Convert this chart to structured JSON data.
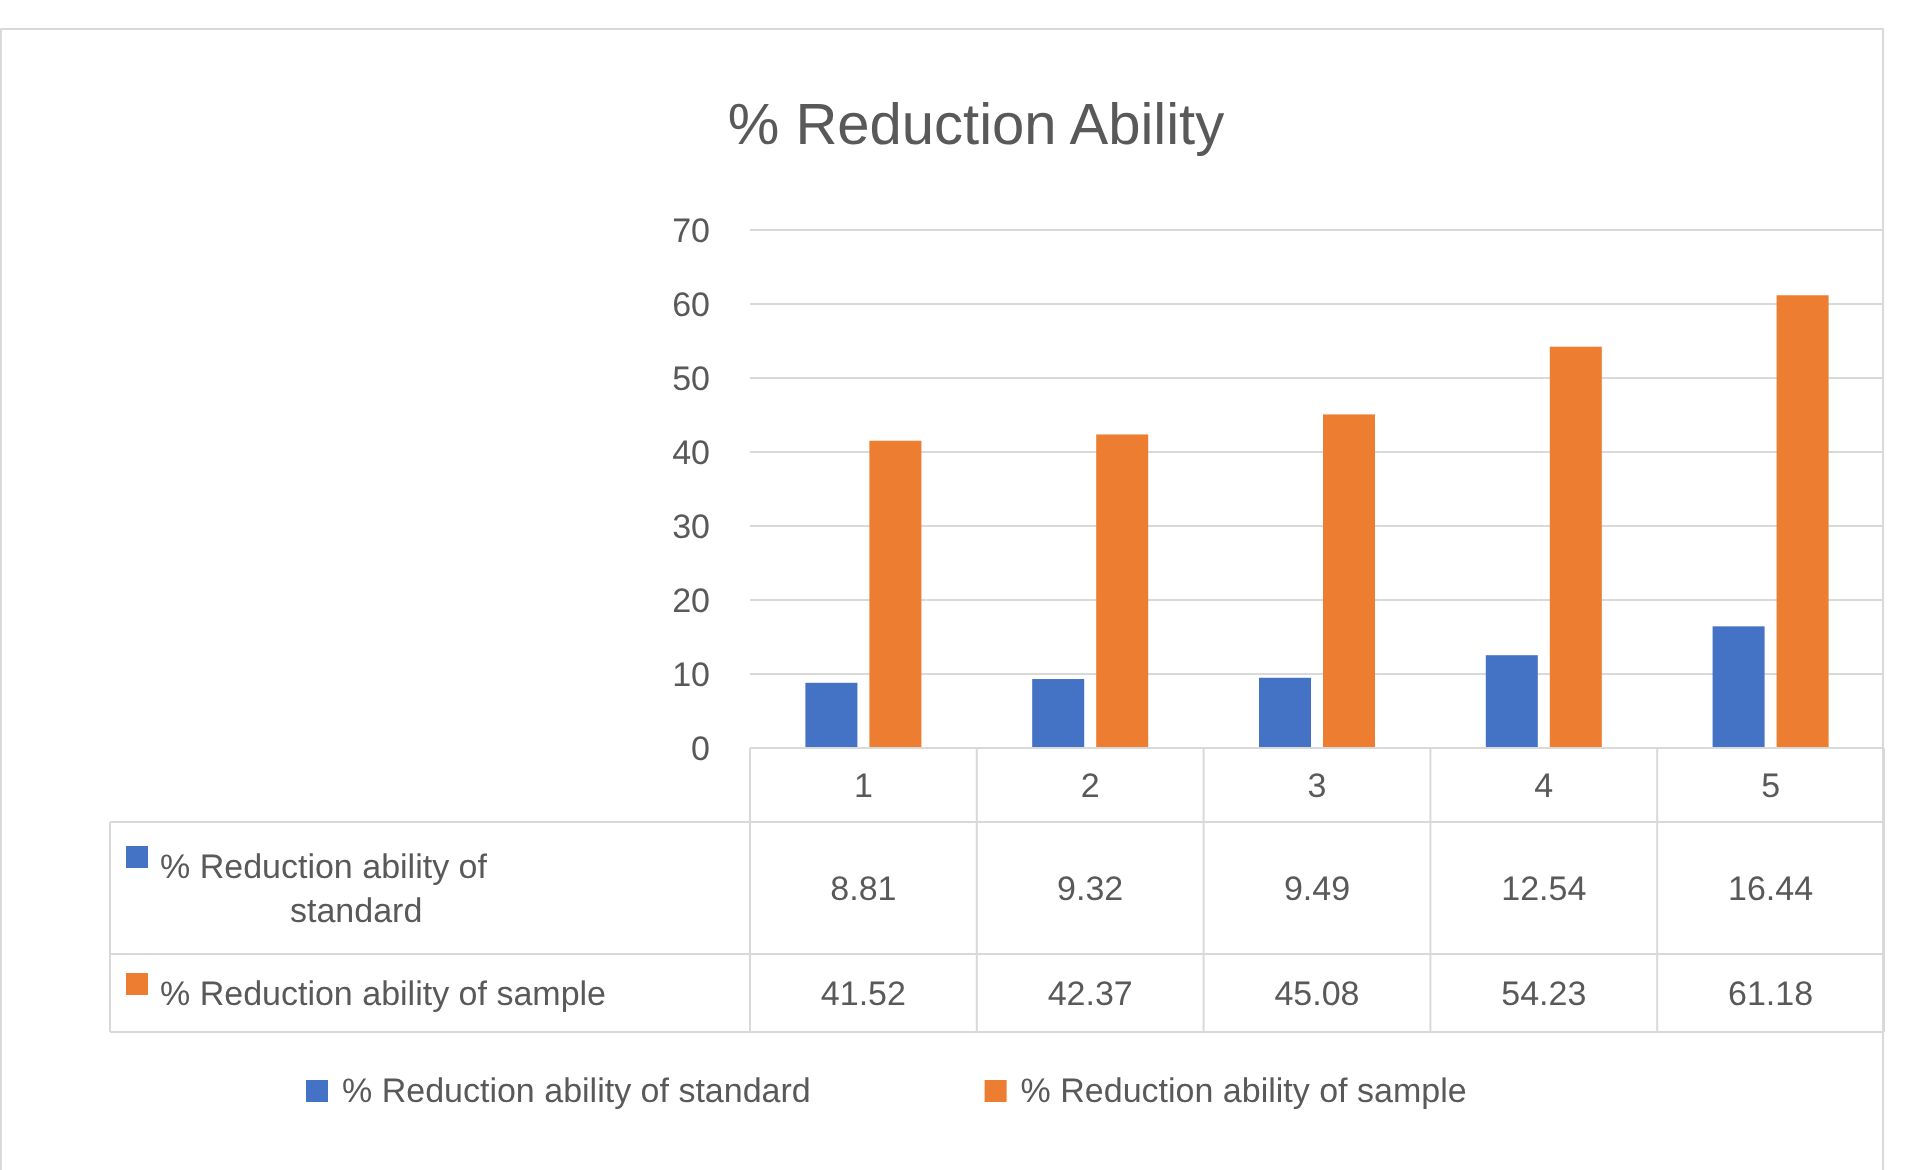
{
  "chart_data": {
    "type": "bar",
    "title": "% Reduction Ability",
    "categories": [
      "1",
      "2",
      "3",
      "4",
      "5"
    ],
    "series": [
      {
        "name": "% Reduction ability of standard",
        "color": "#4472c4",
        "values": [
          8.81,
          9.32,
          9.49,
          12.54,
          16.44
        ]
      },
      {
        "name": "% Reduction ability of sample",
        "color": "#ed7d31",
        "values": [
          41.52,
          42.37,
          45.08,
          54.23,
          61.18
        ]
      }
    ],
    "ylim": [
      0,
      70
    ],
    "yticks": [
      0,
      10,
      20,
      30,
      40,
      50,
      60,
      70
    ],
    "grid": "y",
    "data_labels": true,
    "legend": "bottom"
  }
}
